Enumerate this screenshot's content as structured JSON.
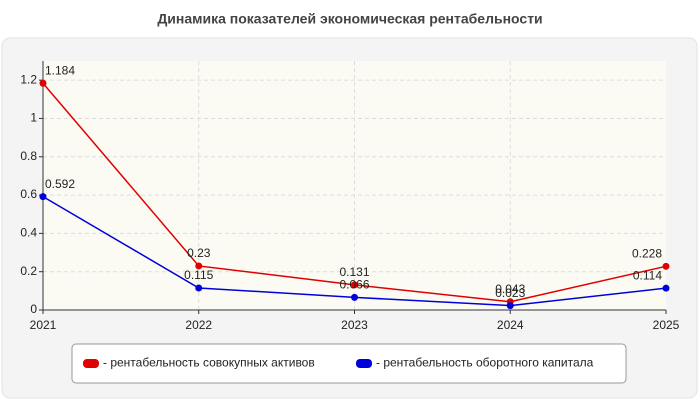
{
  "chart_data": {
    "type": "line",
    "title": "Динамика показателей экономическая рентабельности",
    "x": [
      2021,
      2022,
      2023,
      2024,
      2025
    ],
    "xlim": [
      2021,
      2025
    ],
    "xticks": [
      2021,
      2022,
      2023,
      2024,
      2025
    ],
    "ylim": [
      0,
      1.3
    ],
    "yticks": [
      0,
      0.2,
      0.4,
      0.6,
      0.8,
      1,
      1.2
    ],
    "grid": true,
    "legend": "bottom",
    "series": [
      {
        "name": "- рентабельность совокупных активов",
        "color": "#e00000",
        "values": [
          1.184,
          0.23,
          0.131,
          0.043,
          0.228
        ]
      },
      {
        "name": "- рентабельность оборотного капитала",
        "color": "#0000dd",
        "values": [
          0.592,
          0.115,
          0.066,
          0.023,
          0.114
        ]
      }
    ]
  }
}
